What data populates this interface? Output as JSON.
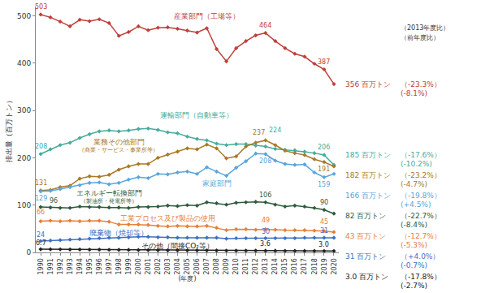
{
  "chart_data": {
    "type": "line",
    "y_label": "排出量（百万トン）",
    "x_label": "(年度)",
    "header": [
      "（2013年度比）",
      "（前年度比）"
    ],
    "x": [
      1990,
      1991,
      1992,
      1993,
      1994,
      1995,
      1996,
      1997,
      1998,
      1999,
      2000,
      2001,
      2002,
      2003,
      2004,
      2005,
      2006,
      2007,
      2008,
      2009,
      2010,
      2011,
      2012,
      2013,
      2014,
      2015,
      2016,
      2017,
      2018,
      2019,
      2020
    ],
    "xlim": [
      1989.5,
      2020.5
    ],
    "xticks": [
      1990,
      1991,
      1992,
      1993,
      1994,
      1995,
      1996,
      1997,
      1998,
      1999,
      2000,
      2001,
      2002,
      2003,
      2004,
      2005,
      2006,
      2007,
      2008,
      2009,
      2010,
      2011,
      2012,
      2013,
      2014,
      2015,
      2016,
      2017,
      2018,
      2019,
      2020
    ],
    "ylim": [
      0,
      520
    ],
    "yticks": [
      0,
      100,
      200,
      300,
      400,
      500
    ],
    "grid": false,
    "marker": "diamond",
    "series": [
      {
        "name": "産業部門（工場等）",
        "color": "#c0403a",
        "values": [
          503,
          497,
          488,
          478,
          492,
          489,
          493,
          485,
          458,
          466,
          478,
          470,
          475,
          476,
          473,
          469,
          465,
          474,
          430,
          404,
          432,
          447,
          459,
          464,
          447,
          432,
          420,
          414,
          399,
          387,
          356
        ],
        "point_labels": [
          {
            "x": 1990,
            "label": "503"
          },
          {
            "x": 2013,
            "label": "464"
          },
          {
            "x": 2019,
            "label": "387"
          }
        ],
        "end_label": "356 百万トン",
        "changes": [
          "（-23.3%）",
          "(-8.1%)"
        ]
      },
      {
        "name": "運輸部門（自動車等）",
        "color": "#45ad9c",
        "values": [
          208,
          218,
          227,
          232,
          242,
          250,
          256,
          258,
          256,
          258,
          261,
          262,
          259,
          254,
          252,
          245,
          240,
          237,
          230,
          227,
          229,
          229,
          226,
          224,
          219,
          217,
          216,
          213,
          210,
          206,
          185
        ],
        "point_labels": [
          {
            "x": 1990,
            "label": "208"
          },
          {
            "x": 2013,
            "label": "224"
          },
          {
            "x": 2019,
            "label": "206"
          }
        ],
        "end_label": "185 百万トン",
        "changes": [
          "（-17.6%）",
          "(-10.2%)"
        ]
      },
      {
        "name": "業務その他部門",
        "name_note": "（商業・サービス・事業所等）",
        "color": "#a87a26",
        "values": [
          131,
          132,
          138,
          141,
          156,
          161,
          160,
          164,
          175,
          182,
          187,
          187,
          200,
          207,
          213,
          220,
          218,
          228,
          220,
          199,
          203,
          224,
          232,
          237,
          227,
          215,
          210,
          206,
          197,
          191,
          182
        ],
        "point_labels": [
          {
            "x": 1990,
            "label": "131"
          },
          {
            "x": 2013,
            "label": "237"
          },
          {
            "x": 2019,
            "label": "191"
          }
        ],
        "end_label": "182 百万トン",
        "changes": [
          "（-23.2%）",
          "(-4.7%)"
        ]
      },
      {
        "name": "家庭部門",
        "color": "#58a6dc",
        "values": [
          129,
          130,
          134,
          138,
          142,
          147,
          148,
          144,
          147,
          154,
          159,
          157,
          166,
          165,
          169,
          171,
          166,
          180,
          171,
          162,
          179,
          193,
          209,
          208,
          194,
          187,
          185,
          186,
          169,
          159,
          166
        ],
        "point_labels": [
          {
            "x": 1990,
            "label": "129"
          },
          {
            "x": 2013,
            "label": "208"
          },
          {
            "x": 2019,
            "label": "159"
          }
        ],
        "end_label": "166 百万トン",
        "changes": [
          "（-19.8%）",
          "(+4.5%)"
        ]
      },
      {
        "name": "エネルギー転換部門",
        "name_note": "（製油所・発電所等）",
        "color": "#2f5b3c",
        "values": [
          96,
          95,
          94,
          94,
          97,
          96,
          96,
          95,
          95,
          94,
          96,
          96,
          97,
          99,
          98,
          100,
          99,
          106,
          104,
          101,
          105,
          106,
          107,
          106,
          101,
          97,
          99,
          97,
          94,
          90,
          82
        ],
        "point_labels": [
          {
            "x": 1990,
            "label": "96"
          },
          {
            "x": 2013,
            "label": "106"
          },
          {
            "x": 2019,
            "label": "90"
          }
        ],
        "end_label": "82 百万トン",
        "changes": [
          "（-22.7%）",
          "(-8.4%)"
        ]
      },
      {
        "name": "工業プロセス及び製品の使用",
        "color": "#e8803a",
        "values": [
          66,
          67,
          66,
          67,
          66,
          67,
          67,
          65,
          59,
          59,
          59,
          58,
          56,
          55,
          56,
          55,
          55,
          56,
          52,
          47,
          49,
          49,
          48,
          49,
          48,
          47,
          47,
          47,
          46,
          45,
          43
        ],
        "point_labels": [
          {
            "x": 1990,
            "label": "66"
          },
          {
            "x": 2013,
            "label": "49"
          },
          {
            "x": 2019,
            "label": "45"
          }
        ],
        "end_label": "43 百万トン",
        "changes": [
          "（-12.7%）",
          "(-5.3%)"
        ]
      },
      {
        "name": "廃棄物（焼却等）",
        "color": "#3d70c4",
        "values": [
          24,
          25,
          26,
          27,
          28,
          29,
          30,
          31,
          31,
          32,
          33,
          33,
          32,
          32,
          31,
          31,
          31,
          31,
          31,
          29,
          30,
          30,
          30,
          30,
          30,
          30,
          30,
          31,
          31,
          31,
          31
        ],
        "point_labels": [
          {
            "x": 1990,
            "label": "24"
          },
          {
            "x": 2013,
            "label": "30"
          },
          {
            "x": 2019,
            "label": "31"
          }
        ],
        "end_label": "31 百万トン",
        "changes": [
          "（+4.0%）",
          "(-0.7%)"
        ]
      },
      {
        "name": "その他（間接CO₂等）",
        "color": "#222222",
        "values": [
          6.7,
          6.6,
          6.4,
          6.2,
          6.1,
          5.9,
          5.8,
          5.6,
          5.4,
          5.2,
          5.0,
          4.8,
          4.6,
          4.5,
          4.4,
          4.3,
          4.2,
          4.1,
          4.0,
          3.9,
          3.8,
          3.8,
          3.7,
          3.6,
          3.5,
          3.4,
          3.3,
          3.2,
          3.1,
          3.0,
          3.0
        ],
        "point_labels": [
          {
            "x": 1990,
            "label": "6.7"
          },
          {
            "x": 2013,
            "label": "3.6"
          },
          {
            "x": 2019,
            "label": "3.0"
          }
        ],
        "end_label": "3.0 百万トン",
        "changes": [
          "（-17.8%）",
          "(-2.7%)"
        ]
      }
    ]
  }
}
